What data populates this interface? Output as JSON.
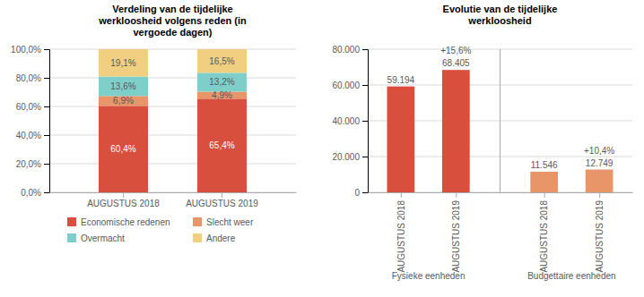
{
  "chart_data": [
    {
      "type": "bar",
      "stacked": true,
      "title": "Verdeling van de tijdelijke\nwerkloosheid volgens reden (in\nvergoede dagen)",
      "categories": [
        "AUGUSTUS 2018",
        "AUGUSTUS 2019"
      ],
      "series": [
        {
          "name": "Economische redenen",
          "color": "#d94f3d",
          "values": [
            60.4,
            65.4
          ],
          "value_labels": [
            "60,4%",
            "65,4%"
          ]
        },
        {
          "name": "Slecht weer",
          "color": "#e8956a",
          "values": [
            6.9,
            4.9
          ],
          "value_labels": [
            "6,9%",
            "4,9%"
          ]
        },
        {
          "name": "Overmacht",
          "color": "#7ececa",
          "values": [
            13.6,
            13.2
          ],
          "value_labels": [
            "13,6%",
            "13,2%"
          ]
        },
        {
          "name": "Andere",
          "color": "#f0d080",
          "values": [
            19.1,
            16.5
          ],
          "value_labels": [
            "19,1%",
            "16,5%"
          ]
        }
      ],
      "ylim": [
        0,
        100
      ],
      "yticks": [
        {
          "value": 0,
          "label": "0,0%"
        },
        {
          "value": 20,
          "label": "20,0%"
        },
        {
          "value": 40,
          "label": "40,0%"
        },
        {
          "value": 60,
          "label": "60,0%"
        },
        {
          "value": 80,
          "label": "80,0%"
        },
        {
          "value": 100,
          "label": "100,0%"
        }
      ],
      "grid": true,
      "data_labels": true,
      "legend": "bottom"
    },
    {
      "type": "bar",
      "title": "Evolutie van de tijdelijke\nwerkloosheid",
      "categories": [
        "AUGUSTUS 2018",
        "AUGUSTUS 2019",
        "AUGUSTUS 2018",
        "AUGUSTUS 2019"
      ],
      "groups": [
        "Fysieke eenheden",
        "Fysieke eenheden",
        "Budgettaire eenheden",
        "Budgettaire eenheden"
      ],
      "values": [
        59194,
        68405,
        11546,
        12749
      ],
      "value_labels": [
        "59.194",
        "68.405",
        "11.546",
        "12.749"
      ],
      "colors": [
        "#d94f3d",
        "#d94f3d",
        "#e8956a",
        "#e8956a"
      ],
      "annotations": [
        null,
        "+15,6%",
        null,
        "+10,4%"
      ],
      "ylim": [
        0,
        80000
      ],
      "yticks": [
        0,
        {
          "value": 20000,
          "label": "20.000"
        },
        {
          "value": 40000,
          "label": "40.000"
        },
        {
          "value": 60000,
          "label": "60.000"
        },
        {
          "value": 80000,
          "label": "80.000"
        }
      ],
      "grid": true,
      "data_labels": true
    }
  ]
}
